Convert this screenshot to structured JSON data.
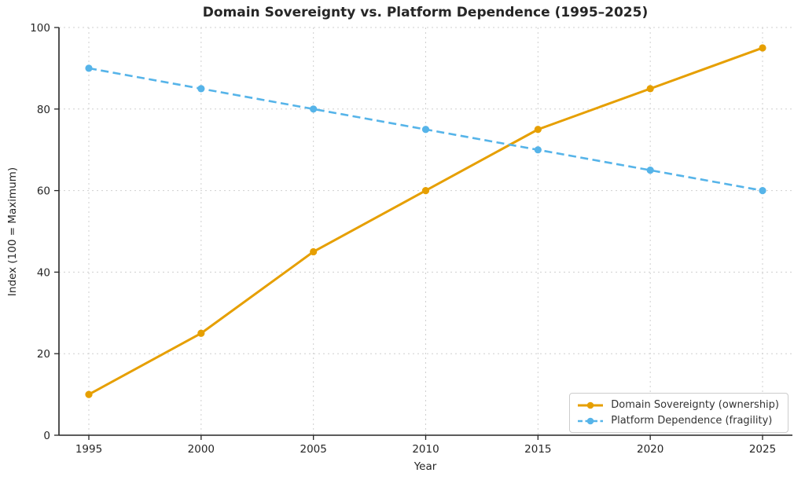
{
  "chart_data": {
    "type": "line",
    "title": "Domain Sovereignty vs. Platform Dependence (1995–2025)",
    "xlabel": "Year",
    "ylabel": "Index (100 = Maximum)",
    "x": [
      1995,
      2000,
      2005,
      2010,
      2015,
      2020,
      2025
    ],
    "x_tick_labels": [
      "1995",
      "2000",
      "2005",
      "2010",
      "2015",
      "2020",
      "2025"
    ],
    "y_ticks": [
      0,
      20,
      40,
      60,
      80,
      100
    ],
    "y_tick_labels": [
      "0",
      "20",
      "40",
      "60",
      "80",
      "100"
    ],
    "ylim": [
      0,
      100
    ],
    "grid": true,
    "grid_color": "#cfcfcf",
    "axis_color": "#262626",
    "legend_position": "lower right",
    "series": [
      {
        "name": "Domain Sovereignty (ownership)",
        "values": [
          10,
          25,
          45,
          60,
          75,
          85,
          95
        ],
        "color": "#E69F00",
        "line_style": "solid",
        "marker": "circle"
      },
      {
        "name": "Platform Dependence (fragility)",
        "values": [
          90,
          85,
          80,
          75,
          70,
          65,
          60
        ],
        "color": "#56B4E9",
        "line_style": "dashed",
        "marker": "circle"
      }
    ]
  }
}
